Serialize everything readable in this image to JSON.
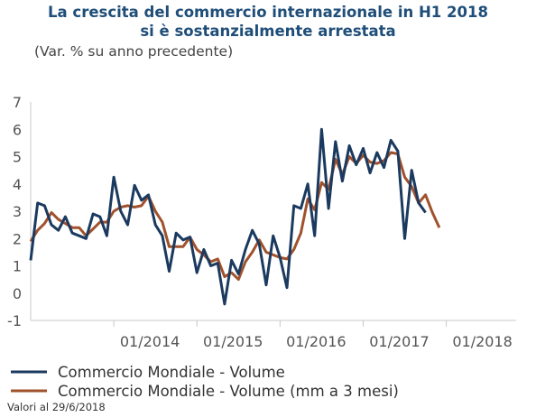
{
  "colors": {
    "title": "#1f4e79",
    "series_volume": "#1b3a5f",
    "series_mm3": "#a0522d",
    "axis": "#c8c8c8"
  },
  "chart_data": {
    "type": "line",
    "title": "La crescita del commercio internazionale in H1 2018 si è sostanzialmente arrestata",
    "title_lines": [
      "La crescita del commercio internazionale in H1 2018",
      "si è sostanzialmente arrestata"
    ],
    "subtitle": "(Var. % su anno precedente)",
    "xlabel": "",
    "ylabel": "",
    "ylim": [
      -1,
      7
    ],
    "yticks": [
      -1,
      0,
      1,
      2,
      3,
      4,
      5,
      6,
      7
    ],
    "xticks": [
      {
        "x": "2014-01",
        "label": "01/2014"
      },
      {
        "x": "2015-01",
        "label": "01/2015"
      },
      {
        "x": "2016-01",
        "label": "01/2016"
      },
      {
        "x": "2017-01",
        "label": "01/2017"
      },
      {
        "x": "2018-01",
        "label": "01/2018"
      }
    ],
    "xlim": [
      "2013-01",
      "2018-09"
    ],
    "grid": false,
    "legend_position": "bottom",
    "note": "Valori al 29/6/2018",
    "series": [
      {
        "name": "Commercio Mondiale - Volume",
        "color": "#1b3a5f",
        "points": [
          [
            "2013-01",
            1.2
          ],
          [
            "2013-02",
            3.3
          ],
          [
            "2013-03",
            3.2
          ],
          [
            "2013-04",
            2.5
          ],
          [
            "2013-05",
            2.3
          ],
          [
            "2013-06",
            2.8
          ],
          [
            "2013-07",
            2.2
          ],
          [
            "2013-08",
            2.1
          ],
          [
            "2013-09",
            2.0
          ],
          [
            "2013-10",
            2.9
          ],
          [
            "2013-11",
            2.8
          ],
          [
            "2013-12",
            2.1
          ],
          [
            "2014-01",
            4.25
          ],
          [
            "2014-02",
            3.0
          ],
          [
            "2014-03",
            2.5
          ],
          [
            "2014-04",
            3.95
          ],
          [
            "2014-05",
            3.4
          ],
          [
            "2014-06",
            3.6
          ],
          [
            "2014-07",
            2.5
          ],
          [
            "2014-08",
            2.1
          ],
          [
            "2014-09",
            0.8
          ],
          [
            "2014-10",
            2.2
          ],
          [
            "2014-11",
            1.95
          ],
          [
            "2014-12",
            2.05
          ],
          [
            "2015-01",
            0.75
          ],
          [
            "2015-02",
            1.6
          ],
          [
            "2015-03",
            1.0
          ],
          [
            "2015-04",
            1.1
          ],
          [
            "2015-05",
            -0.4
          ],
          [
            "2015-06",
            1.2
          ],
          [
            "2015-07",
            0.7
          ],
          [
            "2015-08",
            1.6
          ],
          [
            "2015-09",
            2.3
          ],
          [
            "2015-10",
            1.8
          ],
          [
            "2015-11",
            0.3
          ],
          [
            "2015-12",
            2.1
          ],
          [
            "2016-01",
            1.3
          ],
          [
            "2016-02",
            0.2
          ],
          [
            "2016-03",
            3.2
          ],
          [
            "2016-04",
            3.1
          ],
          [
            "2016-05",
            4.0
          ],
          [
            "2016-06",
            2.1
          ],
          [
            "2016-07",
            6.0
          ],
          [
            "2016-08",
            3.1
          ],
          [
            "2016-09",
            5.55
          ],
          [
            "2016-10",
            4.1
          ],
          [
            "2016-11",
            5.4
          ],
          [
            "2016-12",
            4.7
          ],
          [
            "2017-01",
            5.3
          ],
          [
            "2017-02",
            4.4
          ],
          [
            "2017-03",
            5.15
          ],
          [
            "2017-04",
            4.6
          ],
          [
            "2017-05",
            5.6
          ],
          [
            "2017-06",
            5.2
          ],
          [
            "2017-07",
            2.0
          ],
          [
            "2017-08",
            4.5
          ],
          [
            "2017-09",
            3.3
          ],
          [
            "2017-10",
            2.95
          ]
        ]
      },
      {
        "name": "Commercio Mondiale - Volume (mm a 3 mesi)",
        "color": "#a0522d",
        "points": [
          [
            "2013-01",
            1.9
          ],
          [
            "2013-02",
            2.3
          ],
          [
            "2013-03",
            2.55
          ],
          [
            "2013-04",
            2.95
          ],
          [
            "2013-05",
            2.7
          ],
          [
            "2013-06",
            2.55
          ],
          [
            "2013-07",
            2.4
          ],
          [
            "2013-08",
            2.4
          ],
          [
            "2013-09",
            2.1
          ],
          [
            "2013-10",
            2.35
          ],
          [
            "2013-11",
            2.6
          ],
          [
            "2013-12",
            2.6
          ],
          [
            "2014-01",
            3.0
          ],
          [
            "2014-02",
            3.15
          ],
          [
            "2014-03",
            3.2
          ],
          [
            "2014-04",
            3.15
          ],
          [
            "2014-05",
            3.2
          ],
          [
            "2014-06",
            3.55
          ],
          [
            "2014-07",
            3.0
          ],
          [
            "2014-08",
            2.6
          ],
          [
            "2014-09",
            1.7
          ],
          [
            "2014-10",
            1.7
          ],
          [
            "2014-11",
            1.7
          ],
          [
            "2014-12",
            2.05
          ],
          [
            "2015-01",
            1.6
          ],
          [
            "2015-02",
            1.4
          ],
          [
            "2015-03",
            1.15
          ],
          [
            "2015-04",
            1.25
          ],
          [
            "2015-05",
            0.6
          ],
          [
            "2015-06",
            0.75
          ],
          [
            "2015-07",
            0.5
          ],
          [
            "2015-08",
            1.15
          ],
          [
            "2015-09",
            1.5
          ],
          [
            "2015-10",
            1.95
          ],
          [
            "2015-11",
            1.5
          ],
          [
            "2015-12",
            1.4
          ],
          [
            "2016-01",
            1.3
          ],
          [
            "2016-02",
            1.25
          ],
          [
            "2016-03",
            1.6
          ],
          [
            "2016-04",
            2.2
          ],
          [
            "2016-05",
            3.45
          ],
          [
            "2016-06",
            3.05
          ],
          [
            "2016-07",
            4.05
          ],
          [
            "2016-08",
            3.8
          ],
          [
            "2016-09",
            4.9
          ],
          [
            "2016-10",
            4.35
          ],
          [
            "2016-11",
            5.0
          ],
          [
            "2016-12",
            4.75
          ],
          [
            "2017-01",
            5.05
          ],
          [
            "2017-02",
            4.8
          ],
          [
            "2017-03",
            4.75
          ],
          [
            "2017-04",
            4.85
          ],
          [
            "2017-05",
            5.15
          ],
          [
            "2017-06",
            5.1
          ],
          [
            "2017-07",
            4.25
          ],
          [
            "2017-08",
            3.9
          ],
          [
            "2017-09",
            3.3
          ],
          [
            "2017-10",
            3.6
          ],
          [
            "2017-11",
            2.95
          ],
          [
            "2017-12",
            2.4
          ]
        ]
      }
    ]
  }
}
